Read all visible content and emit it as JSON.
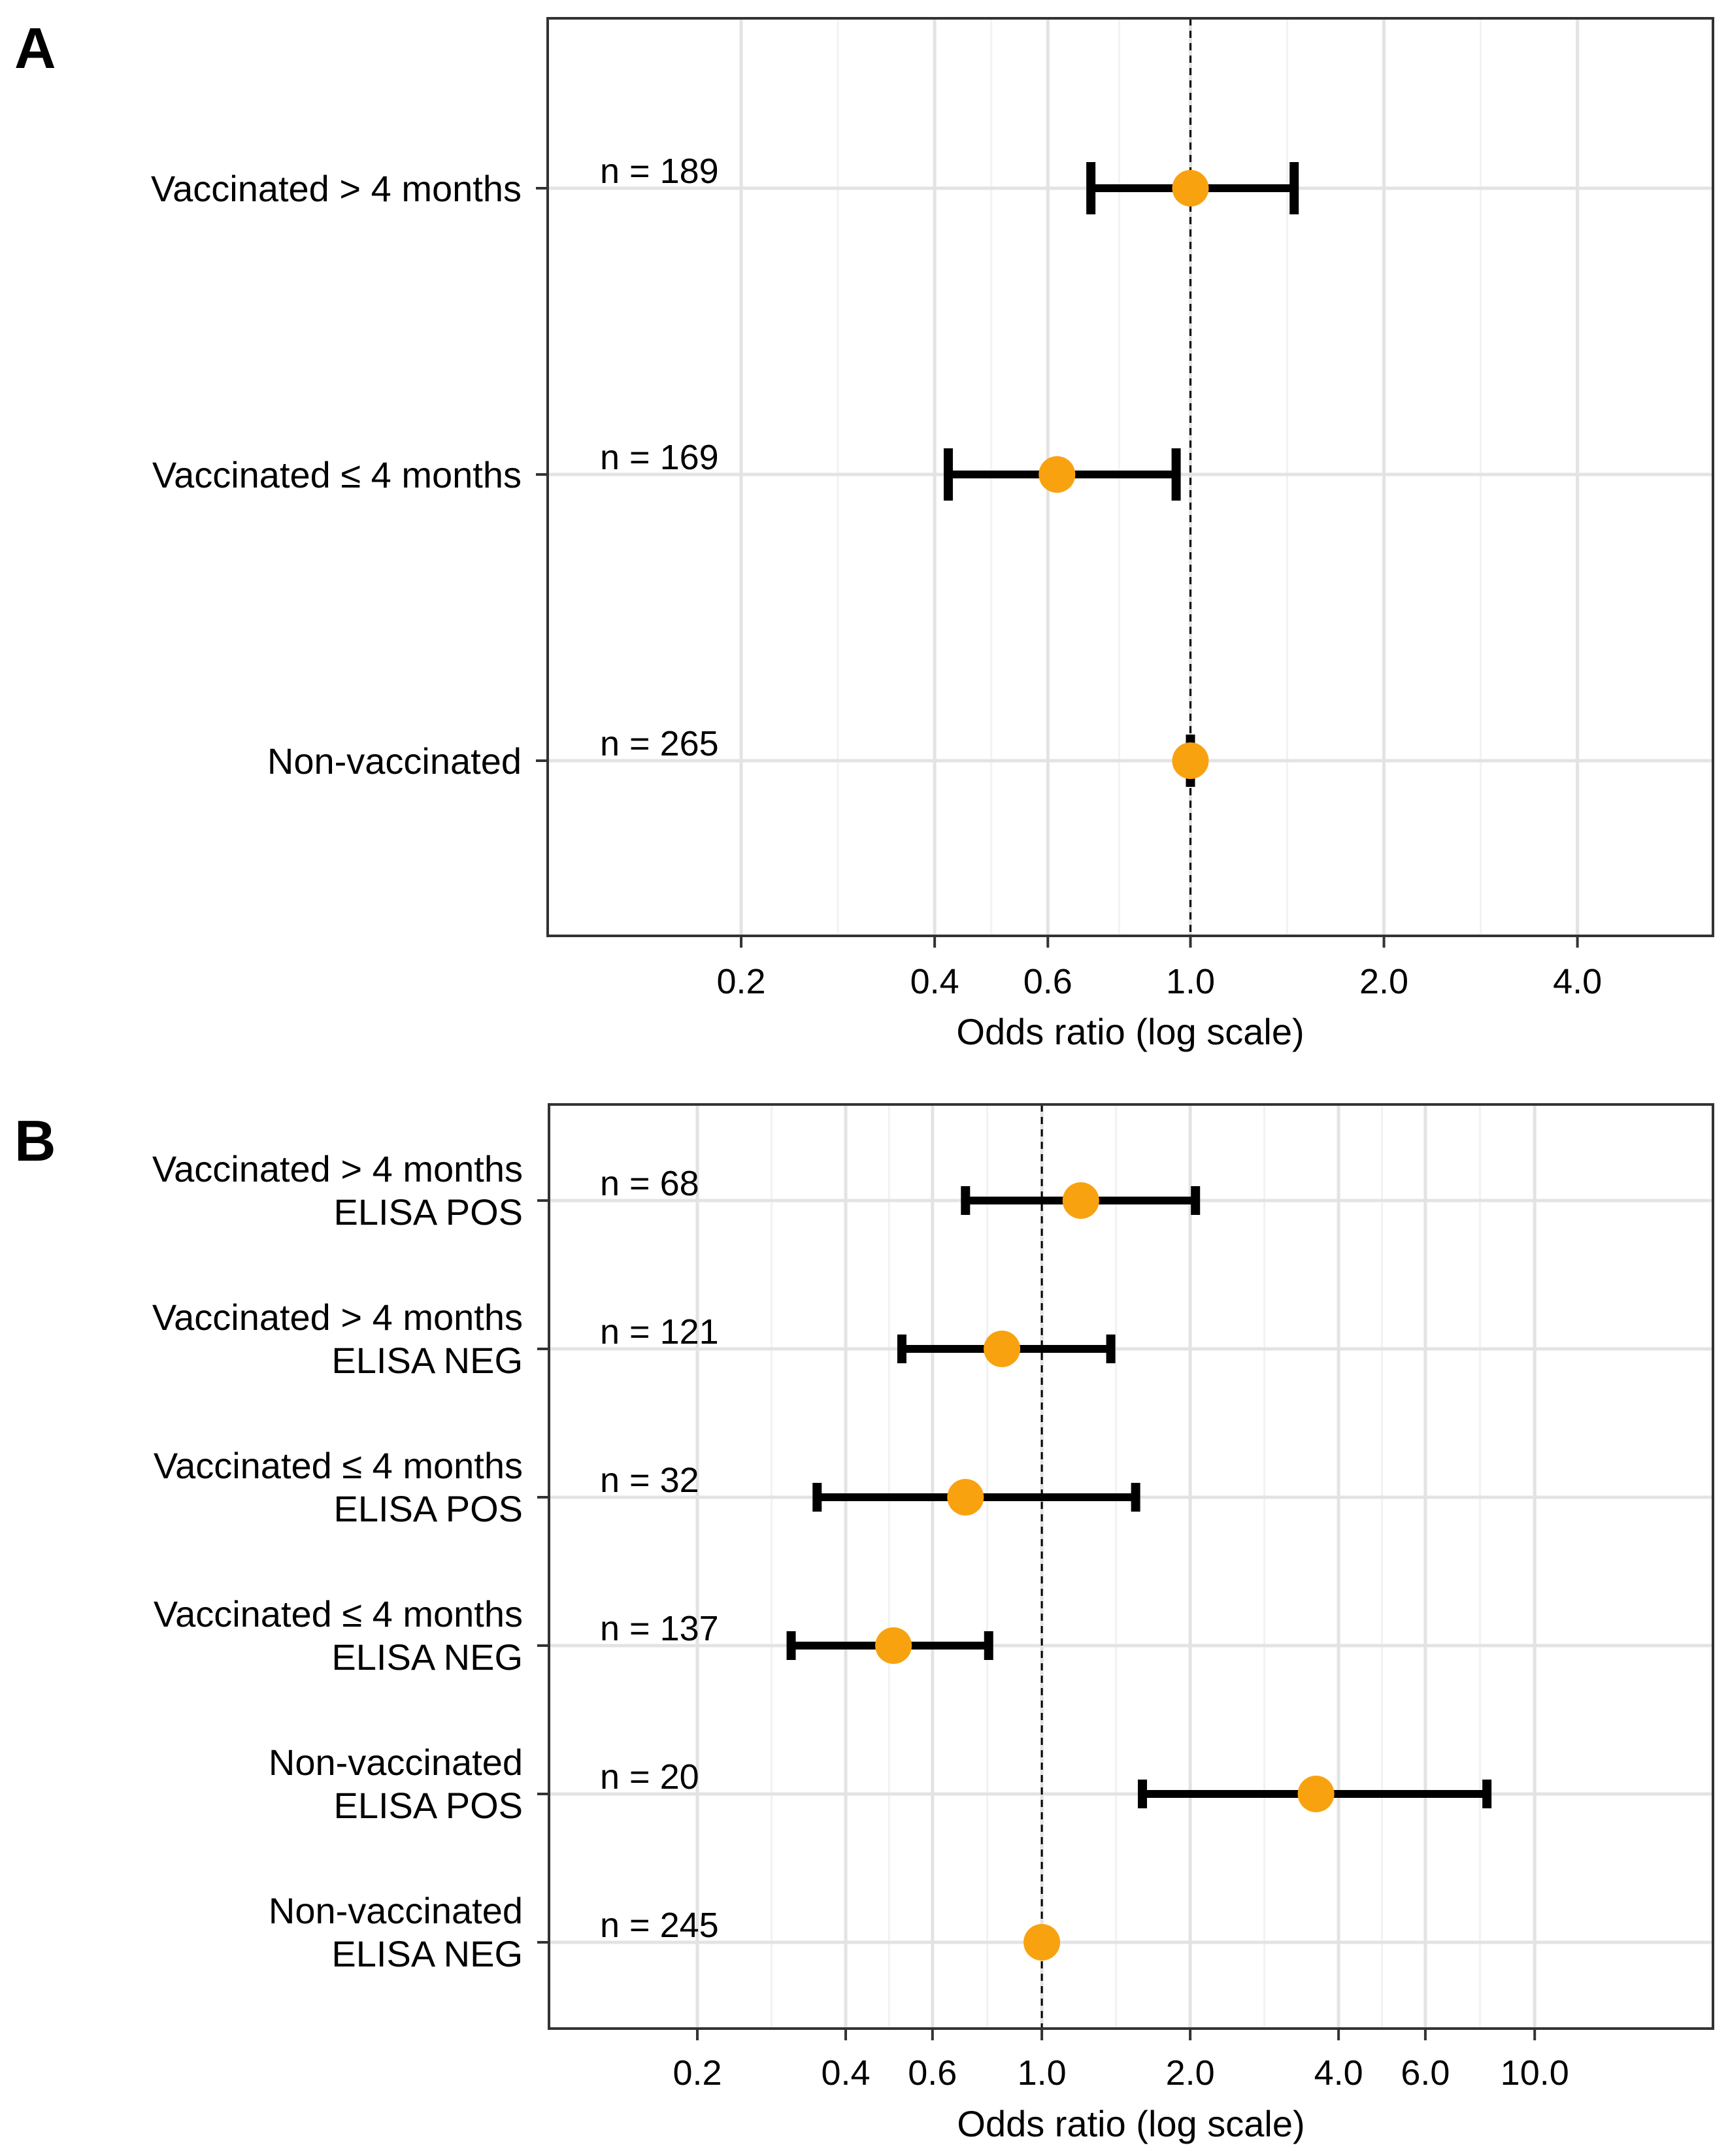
{
  "chart_data": [
    {
      "panel": "A",
      "type": "forest",
      "xlabel": "Odds ratio (log scale)",
      "xscale": "log",
      "xlim": [
        0.1,
        6.5
      ],
      "xticks": [
        0.2,
        0.4,
        0.6,
        1.0,
        2.0,
        4.0
      ],
      "xtick_labels": [
        "0.2",
        "0.4",
        "0.6",
        "1.0",
        "2.0",
        "4.0"
      ],
      "reference_line": 1.0,
      "point_color": "#f9a20f",
      "rows": [
        {
          "label": [
            "Vaccinated > 4 months"
          ],
          "n": "n = 189",
          "or": 1.0,
          "lo": 0.7,
          "hi": 1.45
        },
        {
          "label": [
            "Vaccinated  ≤ 4 months"
          ],
          "n": "n = 169",
          "or": 0.62,
          "lo": 0.42,
          "hi": 0.95
        },
        {
          "label": [
            "Non-vaccinated"
          ],
          "n": "n = 265",
          "or": 1.0,
          "lo": 1.0,
          "hi": 1.0
        }
      ]
    },
    {
      "panel": "B",
      "type": "forest",
      "xlabel": "Odds ratio (log scale)",
      "xscale": "log",
      "xlim": [
        0.1,
        23
      ],
      "xticks": [
        0.2,
        0.4,
        0.6,
        1.0,
        2.0,
        4.0,
        6.0,
        10.0
      ],
      "xtick_labels": [
        "0.2",
        "0.4",
        "0.6",
        "1.0",
        "2.0",
        "4.0",
        "6.0",
        "10.0"
      ],
      "reference_line": 1.0,
      "point_color": "#f9a20f",
      "rows": [
        {
          "label": [
            "Vaccinated > 4 months",
            "ELISA POS"
          ],
          "n": "n = 68",
          "or": 1.2,
          "lo": 0.7,
          "hi": 2.05
        },
        {
          "label": [
            "Vaccinated > 4 months",
            "ELISA NEG"
          ],
          "n": "n = 121",
          "or": 0.83,
          "lo": 0.52,
          "hi": 1.38
        },
        {
          "label": [
            "Vaccinated ≤ 4 months",
            "ELISA POS"
          ],
          "n": "n = 32",
          "or": 0.7,
          "lo": 0.35,
          "hi": 1.55
        },
        {
          "label": [
            "Vaccinated ≤ 4 months",
            "ELISA NEG"
          ],
          "n": "n = 137",
          "or": 0.5,
          "lo": 0.31,
          "hi": 0.78
        },
        {
          "label": [
            "Non-vaccinated",
            "ELISA POS"
          ],
          "n": "n = 20",
          "or": 3.6,
          "lo": 1.6,
          "hi": 8.0
        },
        {
          "label": [
            "Non-vaccinated",
            "ELISA NEG"
          ],
          "n": "n = 245",
          "or": 1.0,
          "lo": 1.0,
          "hi": 1.0
        }
      ]
    }
  ]
}
